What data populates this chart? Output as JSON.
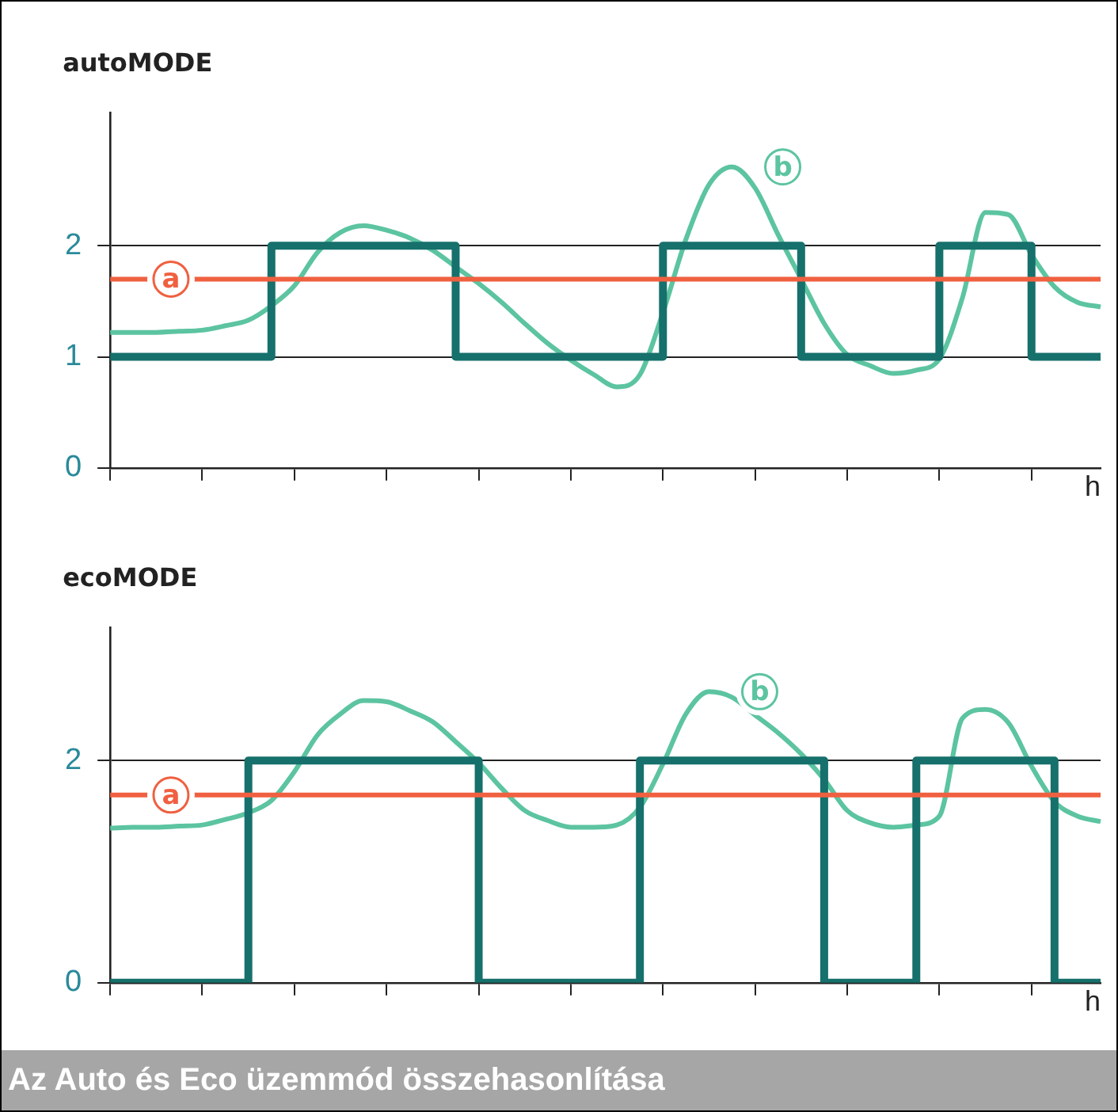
{
  "chart_data": [
    {
      "type": "line",
      "ylabel": "autoMODE",
      "xlabel": "h",
      "categories": [
        null,
        null,
        null,
        null,
        null,
        null,
        null,
        null,
        null,
        null,
        null,
        null,
        null,
        null,
        null,
        null,
        null,
        null,
        null,
        null,
        null,
        null,
        null,
        null,
        null,
        null,
        null,
        null,
        null,
        null,
        null,
        null,
        null,
        null,
        null,
        null,
        null,
        null,
        null,
        null,
        null,
        null,
        null,
        null
      ],
      "ylim": [
        0,
        3.2
      ],
      "yticks": [
        0,
        1,
        2
      ],
      "grid": "y",
      "legend": false,
      "tick_labels": "y",
      "ref_lines": [
        {
          "axis": "y",
          "value": 1.7,
          "label": "a",
          "color": "#f06040"
        }
      ],
      "series": [
        {
          "type": "step",
          "color": "#16706c",
          "values": [
            1,
            1,
            1,
            1,
            1,
            1,
            1,
            1,
            2,
            2,
            2,
            2,
            2,
            2,
            2,
            2,
            1,
            1,
            1,
            1,
            1,
            1,
            1,
            1,
            1,
            2,
            2,
            2,
            2,
            2,
            2,
            1,
            1,
            1,
            1,
            1,
            1,
            2,
            2,
            2,
            2,
            1,
            1,
            1
          ]
        },
        {
          "type": "line",
          "name": "b",
          "color": "#5cc4a0",
          "values": [
            1.22,
            1.22,
            1.22,
            1.23,
            1.24,
            1.28,
            1.33,
            1.46,
            1.64,
            1.94,
            2.12,
            2.18,
            2.14,
            2.07,
            1.96,
            1.81,
            1.66,
            1.49,
            1.3,
            1.12,
            0.97,
            0.84,
            0.73,
            0.84,
            1.4,
            2.06,
            2.55,
            2.71,
            2.52,
            2.1,
            1.7,
            1.3,
            1.02,
            0.92,
            0.85,
            0.88,
            0.98,
            1.53,
            2.3,
            2.28,
            1.92,
            1.63,
            1.49,
            1.45
          ]
        }
      ]
    },
    {
      "type": "line",
      "ylabel": "ecoMODE",
      "xlabel": "h",
      "categories": [
        null,
        null,
        null,
        null,
        null,
        null,
        null,
        null,
        null,
        null,
        null,
        null,
        null,
        null,
        null,
        null,
        null,
        null,
        null,
        null,
        null,
        null,
        null,
        null,
        null,
        null,
        null,
        null,
        null,
        null,
        null,
        null,
        null,
        null,
        null,
        null,
        null,
        null,
        null,
        null,
        null,
        null,
        null,
        null
      ],
      "ylim": [
        0,
        3.2
      ],
      "yticks": [
        0,
        2
      ],
      "grid": "y",
      "legend": false,
      "tick_labels": "y",
      "ref_lines": [
        {
          "axis": "y",
          "value": 1.69,
          "label": "a",
          "color": "#f06040"
        }
      ],
      "annotations": [
        "Az Auto és Eco üzemmód összehasonlítása"
      ],
      "series": [
        {
          "type": "step",
          "color": "#16706c",
          "values": [
            0,
            0,
            0,
            0,
            0,
            0,
            0,
            2,
            2,
            2,
            2,
            2,
            2,
            2,
            2,
            2,
            2,
            0,
            0,
            0,
            0,
            0,
            0,
            0,
            2,
            2,
            2,
            2,
            2,
            2,
            2,
            2,
            0,
            0,
            0,
            0,
            2,
            2,
            2,
            2,
            2,
            2,
            0,
            0
          ]
        },
        {
          "type": "line",
          "name": "b",
          "color": "#5cc4a0",
          "values": [
            1.39,
            1.4,
            1.4,
            1.41,
            1.42,
            1.47,
            1.53,
            1.64,
            1.9,
            2.23,
            2.42,
            2.54,
            2.53,
            2.45,
            2.35,
            2.17,
            1.98,
            1.75,
            1.55,
            1.46,
            1.4,
            1.4,
            1.42,
            1.58,
            1.97,
            2.42,
            2.62,
            2.57,
            2.41,
            2.25,
            2.06,
            1.83,
            1.55,
            1.44,
            1.4,
            1.42,
            1.5,
            2.38,
            2.46,
            2.34,
            1.95,
            1.63,
            1.5,
            1.45
          ]
        }
      ]
    }
  ]
}
